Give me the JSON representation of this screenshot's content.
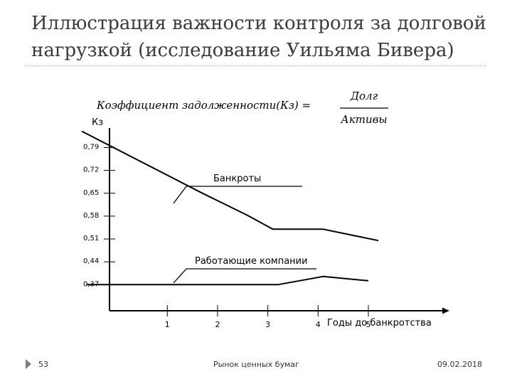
{
  "title": "Иллюстрация важности контроля за долговой нагрузкой (исследование Уильяма Бивера)",
  "formula": {
    "left": "Коэффициент задолженности(Кз) =",
    "numerator": "Долг",
    "denominator": "Активы"
  },
  "chart_data": {
    "type": "line",
    "ylabel": "Кз",
    "xlabel": "Годы до банкротства",
    "yticks": [
      0.79,
      0.72,
      0.65,
      0.58,
      0.51,
      0.44,
      0.37
    ],
    "ytick_labels": [
      "0,79",
      "0,72",
      "0,65",
      "0,58",
      "0,51",
      "0,44",
      "0,37"
    ],
    "xticks": [
      1,
      2,
      3,
      4,
      5
    ],
    "xlim": [
      -0.15,
      6.5
    ],
    "ylim": [
      0.29,
      0.85
    ],
    "series": [
      {
        "name": "Банкроты",
        "x": [
          -0.7,
          1.7,
          2.1,
          2.6,
          3.1,
          3.2,
          4.1,
          5.2
        ],
        "y": [
          0.84,
          0.65,
          0.62,
          0.582,
          0.54,
          0.54,
          0.54,
          0.505
        ]
      },
      {
        "name": "Работающие компании",
        "x": [
          -0.6,
          1.7,
          2.1,
          2.6,
          3.1,
          3.2,
          4.1,
          5.0
        ],
        "y": [
          0.37,
          0.37,
          0.37,
          0.37,
          0.37,
          0.37,
          0.395,
          0.382
        ]
      }
    ],
    "annotations": [
      "Банкроты",
      "Работающие компании"
    ]
  },
  "footer": {
    "slide_number": "53",
    "center": "Рынок ценных бумаг",
    "date": "09.02.2018"
  },
  "colors": {
    "title": "#3a3a3a",
    "line": "#000000",
    "divider": "#a9a9a9",
    "nav_arrow": "#7f7f7f"
  }
}
